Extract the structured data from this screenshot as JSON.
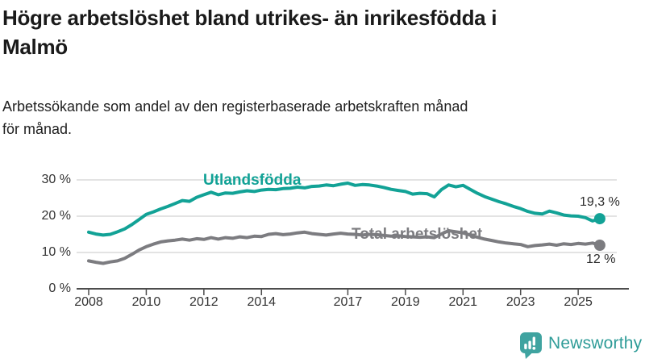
{
  "header": {
    "title_lines": [
      "Högre arbetslöshet bland utrikes- än inrikesfödda i",
      "Malmö"
    ],
    "subtitle_lines": [
      "Arbetssökande som andel av den registerbaserade arbetskraften månad",
      "för månad."
    ]
  },
  "chart_data": {
    "type": "line",
    "title": "Högre arbetslöshet bland utrikes- än inrikesfödda i Malmö",
    "subtitle": "Arbetssökande som andel av den registerbaserade arbetskraften månad för månad.",
    "xlabel": "",
    "ylabel": "",
    "unit": "%",
    "grid": "horizontal",
    "legend_position": "inline-labels",
    "xlim": [
      2007.6,
      2026.3
    ],
    "ylim": [
      0,
      33
    ],
    "x_ticks": [
      2008,
      2010,
      2012,
      2014,
      2017,
      2019,
      2021,
      2023,
      2025
    ],
    "x_tick_labels": [
      "2008",
      "2010",
      "2012",
      "2014",
      "2017",
      "2019",
      "2021",
      "2023",
      "2025"
    ],
    "y_ticks": [
      0,
      10,
      20,
      30
    ],
    "y_tick_labels": [
      "0 %",
      "10 %",
      "20 %",
      "30 %"
    ],
    "style": {
      "grid_color": "#dadada",
      "axis_color": "#4d4d4d",
      "tick_text_color": "#333333",
      "annotation_color": "#2b2b2b",
      "line_width": 4,
      "end_dot_radius": 7
    },
    "series": [
      {
        "id": "utlandsfodda",
        "name": "Utlandsfödda",
        "color": "#12a296",
        "end_label": "19,3 %",
        "last_value": 19.3,
        "x": [
          2008.0,
          2008.25,
          2008.5,
          2008.75,
          2009.0,
          2009.25,
          2009.5,
          2009.75,
          2010.0,
          2010.25,
          2010.5,
          2010.75,
          2011.0,
          2011.25,
          2011.5,
          2011.75,
          2012.0,
          2012.25,
          2012.5,
          2012.75,
          2013.0,
          2013.25,
          2013.5,
          2013.75,
          2014.0,
          2014.25,
          2014.5,
          2014.75,
          2015.0,
          2015.25,
          2015.5,
          2015.75,
          2016.0,
          2016.25,
          2016.5,
          2016.75,
          2017.0,
          2017.25,
          2017.5,
          2017.75,
          2018.0,
          2018.25,
          2018.5,
          2018.75,
          2019.0,
          2019.25,
          2019.5,
          2019.75,
          2020.0,
          2020.25,
          2020.5,
          2020.75,
          2021.0,
          2021.25,
          2021.5,
          2021.75,
          2022.0,
          2022.25,
          2022.5,
          2022.75,
          2023.0,
          2023.25,
          2023.5,
          2023.75,
          2024.0,
          2024.25,
          2024.5,
          2024.75,
          2025.0,
          2025.25,
          2025.5,
          2025.75
        ],
        "values": [
          15.6,
          15.1,
          14.8,
          15.0,
          15.7,
          16.5,
          17.7,
          19.1,
          20.5,
          21.2,
          22.0,
          22.7,
          23.5,
          24.3,
          24.1,
          25.2,
          25.9,
          26.6,
          25.9,
          26.4,
          26.3,
          26.7,
          27.0,
          26.8,
          27.2,
          27.4,
          27.3,
          27.6,
          27.7,
          28.0,
          27.8,
          28.2,
          28.3,
          28.6,
          28.4,
          28.8,
          29.1,
          28.5,
          28.7,
          28.6,
          28.3,
          27.9,
          27.4,
          27.1,
          26.8,
          26.1,
          26.3,
          26.2,
          25.3,
          27.3,
          28.6,
          28.1,
          28.5,
          27.4,
          26.3,
          25.4,
          24.7,
          24.0,
          23.4,
          22.7,
          22.1,
          21.3,
          20.8,
          20.6,
          21.4,
          20.9,
          20.3,
          20.1,
          20.0,
          19.6,
          18.7,
          19.3
        ]
      },
      {
        "id": "total-arbetsloshet",
        "name": "Total arbetslöshet",
        "color": "#7c7c80",
        "end_label": "12 %",
        "last_value": 12.0,
        "x": [
          2008.0,
          2008.25,
          2008.5,
          2008.75,
          2009.0,
          2009.25,
          2009.5,
          2009.75,
          2010.0,
          2010.25,
          2010.5,
          2010.75,
          2011.0,
          2011.25,
          2011.5,
          2011.75,
          2012.0,
          2012.25,
          2012.5,
          2012.75,
          2013.0,
          2013.25,
          2013.5,
          2013.75,
          2014.0,
          2014.25,
          2014.5,
          2014.75,
          2015.0,
          2015.25,
          2015.5,
          2015.75,
          2016.0,
          2016.25,
          2016.5,
          2016.75,
          2017.0,
          2017.25,
          2017.5,
          2017.75,
          2018.0,
          2018.25,
          2018.5,
          2018.75,
          2019.0,
          2019.25,
          2019.5,
          2019.75,
          2020.0,
          2020.25,
          2020.5,
          2020.75,
          2021.0,
          2021.25,
          2021.5,
          2021.75,
          2022.0,
          2022.25,
          2022.5,
          2022.75,
          2023.0,
          2023.25,
          2023.5,
          2023.75,
          2024.0,
          2024.25,
          2024.5,
          2024.75,
          2025.0,
          2025.25,
          2025.5,
          2025.75
        ],
        "values": [
          7.7,
          7.3,
          7.0,
          7.4,
          7.7,
          8.4,
          9.5,
          10.7,
          11.6,
          12.3,
          12.9,
          13.2,
          13.4,
          13.7,
          13.4,
          13.8,
          13.6,
          14.1,
          13.7,
          14.1,
          13.9,
          14.3,
          14.1,
          14.5,
          14.4,
          15.0,
          15.2,
          14.9,
          15.1,
          15.4,
          15.6,
          15.2,
          15.0,
          14.8,
          15.1,
          15.3,
          15.1,
          15.0,
          14.8,
          15.0,
          14.9,
          14.7,
          14.5,
          14.6,
          14.4,
          14.3,
          14.2,
          14.3,
          14.1,
          15.1,
          16.0,
          15.7,
          15.4,
          14.8,
          14.2,
          13.7,
          13.3,
          12.9,
          12.6,
          12.4,
          12.2,
          11.6,
          11.9,
          12.1,
          12.3,
          12.0,
          12.4,
          12.2,
          12.5,
          12.3,
          12.6,
          12.0
        ]
      }
    ]
  },
  "footer": {
    "brand": "Newsworthy",
    "brand_text_color": "#2f9c98",
    "brand_icon_color": "#3fa3a0",
    "brand_icon": "bar-chart-bubble-icon"
  }
}
